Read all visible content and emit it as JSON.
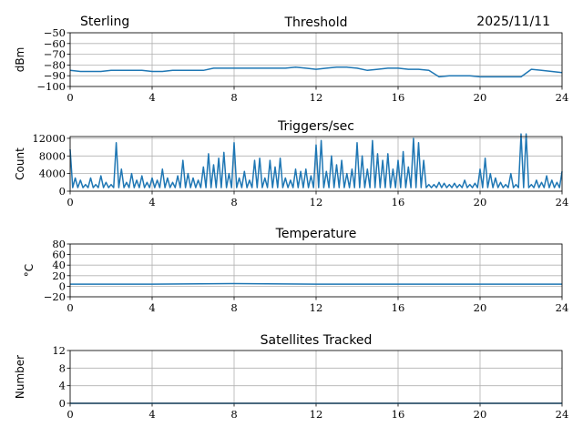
{
  "header": {
    "station": "Sterling",
    "date": "2025/11/11"
  },
  "chart_data": [
    {
      "type": "line",
      "title": "Threshold",
      "xlabel": "",
      "ylabel": "dBm",
      "xlim": [
        0,
        24
      ],
      "ylim": [
        -100,
        -50
      ],
      "xticks": [
        0,
        4,
        8,
        12,
        16,
        20,
        24
      ],
      "yticks": [
        -100,
        -90,
        -80,
        -70,
        -60,
        -50
      ],
      "ytick_labels": [
        "−100",
        "−90",
        "−80",
        "−70",
        "−60",
        "−50"
      ],
      "grid": true,
      "x_step": 0.5,
      "values": [
        -85,
        -86,
        -86,
        -86,
        -85,
        -85,
        -85,
        -85,
        -86,
        -86,
        -85,
        -85,
        -85,
        -85,
        -83,
        -83,
        -83,
        -83,
        -83,
        -83,
        -83,
        -83,
        -82,
        -83,
        -84,
        -83,
        -82,
        -82,
        -83,
        -85,
        -84,
        -83,
        -83,
        -84,
        -84,
        -85,
        -91,
        -90,
        -90,
        -90,
        -91,
        -91,
        -91,
        -91,
        -91,
        -84,
        -85,
        -86,
        -87
      ]
    },
    {
      "type": "line",
      "title": "Triggers/sec",
      "xlabel": "",
      "ylabel": "Count",
      "xlim": [
        0,
        24
      ],
      "ylim": [
        0,
        12400
      ],
      "xticks": [
        0,
        4,
        8,
        12,
        16,
        20,
        24
      ],
      "yticks": [
        0,
        4000,
        8000,
        12000
      ],
      "ytick_labels": [
        "0",
        "4000",
        "8000",
        "12000"
      ],
      "grid": true,
      "x_step": 0.25,
      "values": [
        9500,
        3000,
        2500,
        1500,
        3000,
        1500,
        3500,
        2000,
        1500,
        11000,
        5000,
        2000,
        4000,
        2500,
        3500,
        2000,
        3000,
        2500,
        5000,
        3000,
        2000,
        3500,
        7000,
        4000,
        3000,
        2500,
        5500,
        8500,
        6000,
        7500,
        8800,
        4000,
        11000,
        3000,
        4500,
        2500,
        7000,
        7500,
        3000,
        7000,
        5500,
        7500,
        3000,
        2500,
        5000,
        4500,
        5000,
        3500,
        10500,
        11500,
        4500,
        8000,
        6000,
        7000,
        4000,
        5000,
        11000,
        8000,
        5000,
        11500,
        8500,
        7000,
        8500,
        5000,
        7000,
        9000,
        5500,
        12000,
        11000,
        7000,
        1500,
        1500,
        2000,
        1800,
        1500,
        1800,
        1500,
        2500,
        1500,
        1800,
        5000,
        7500,
        4000,
        3000,
        2000,
        1500,
        4000,
        1500,
        13000,
        13000,
        1500,
        2500,
        2000,
        3500,
        2500,
        2000,
        4500
      ]
    },
    {
      "type": "line",
      "title": "Temperature",
      "xlabel": "",
      "ylabel": "°C",
      "xlim": [
        0,
        24
      ],
      "ylim": [
        -20,
        80
      ],
      "xticks": [
        0,
        4,
        8,
        12,
        16,
        20,
        24
      ],
      "yticks": [
        -20,
        0,
        20,
        40,
        60,
        80
      ],
      "ytick_labels": [
        "−20",
        "0",
        "20",
        "40",
        "60",
        "80"
      ],
      "grid": true,
      "x_step": 4,
      "values": [
        4,
        4,
        5,
        4,
        4,
        4,
        4
      ]
    },
    {
      "type": "line",
      "title": "Satellites Tracked",
      "xlabel": "",
      "ylabel": "Number",
      "xlim": [
        0,
        24
      ],
      "ylim": [
        0,
        12
      ],
      "xticks": [
        0,
        4,
        8,
        12,
        16,
        20,
        24
      ],
      "yticks": [
        0,
        4,
        8,
        12
      ],
      "ytick_labels": [
        "0",
        "4",
        "8",
        "12"
      ],
      "grid": true,
      "x_step": 24,
      "values": [
        0,
        0
      ]
    }
  ]
}
